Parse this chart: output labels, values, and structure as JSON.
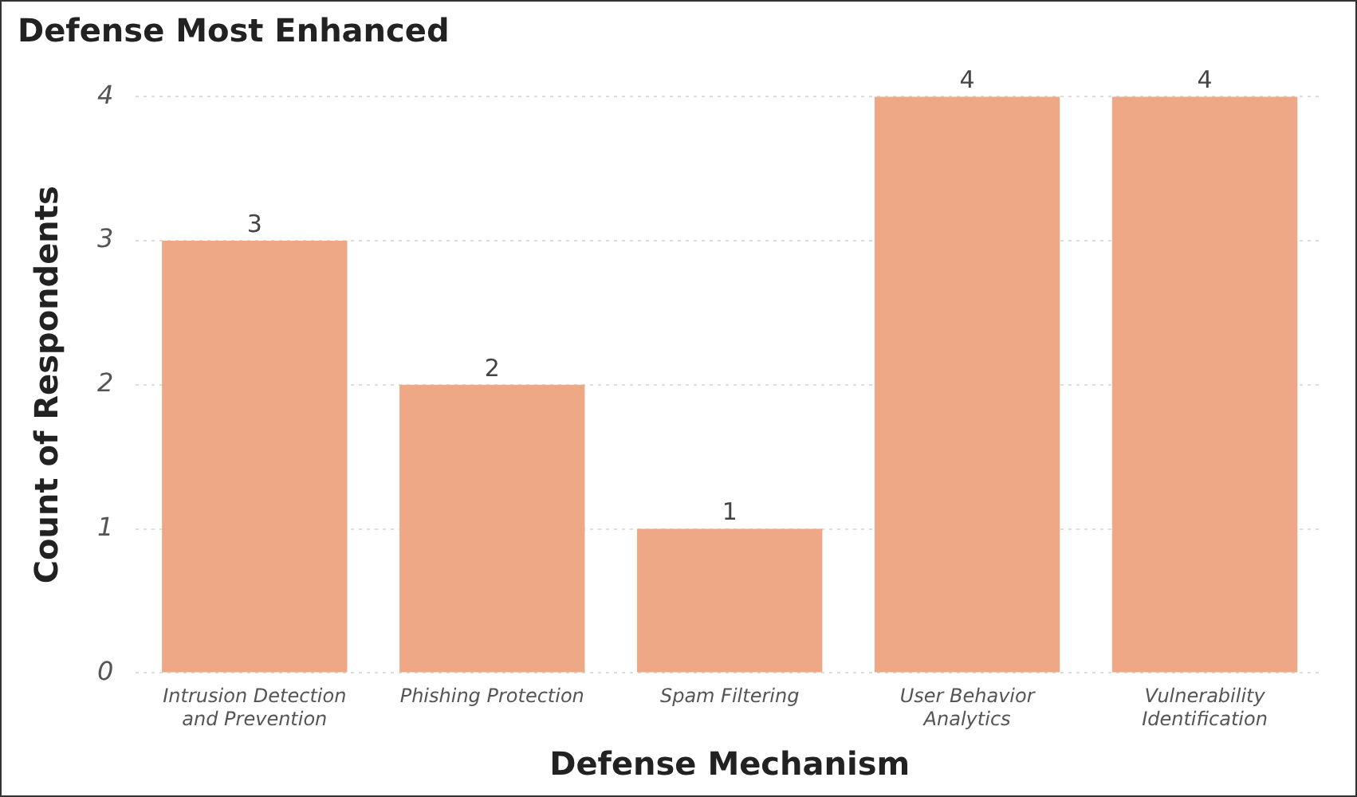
{
  "chart_data": {
    "type": "bar",
    "title": "Defense Most Enhanced",
    "xlabel": "Defense Mechanism",
    "ylabel": "Count of Respondents",
    "categories": [
      "Intrusion Detection and Prevention",
      "Phishing Protection",
      "Spam Filtering",
      "User Behavior Analytics",
      "Vulnerability Identification"
    ],
    "values": [
      3,
      2,
      1,
      4,
      4
    ],
    "color": "#eea886",
    "ylim": [
      0,
      4
    ],
    "yticks": [
      0,
      1,
      2,
      3,
      4
    ],
    "grid": "y",
    "data_labels": true
  }
}
